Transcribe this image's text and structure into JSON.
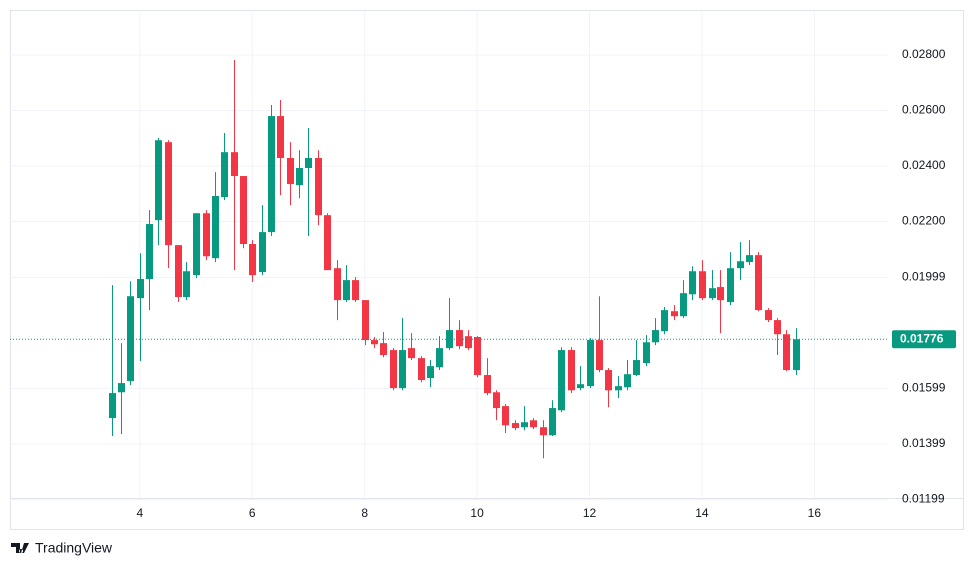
{
  "brand": "TradingView",
  "chart_data": {
    "type": "candlestick",
    "up_color": "#089981",
    "down_color": "#f23645",
    "grid": true,
    "xlim": [
      1.69,
      17.31
    ],
    "xticks": [
      4,
      6,
      8,
      10,
      12,
      14,
      16
    ],
    "ylim": [
      0.01204,
      0.02955
    ],
    "yticks": [
      {
        "value": 0.01199,
        "label": "0.01199"
      },
      {
        "value": 0.01399,
        "label": "0.01399"
      },
      {
        "value": 0.01599,
        "label": "0.01599"
      },
      {
        "value": 0.01999,
        "label": "0.01999"
      },
      {
        "value": 0.022,
        "label": "0.02200"
      },
      {
        "value": 0.024,
        "label": "0.02400"
      },
      {
        "value": 0.026,
        "label": "0.02600"
      },
      {
        "value": 0.028,
        "label": "0.02800"
      }
    ],
    "last_price": {
      "value": 0.01776,
      "label": "0.01776"
    },
    "x": [
      3.5,
      3.67,
      3.83,
      4,
      4.17,
      4.33,
      4.5,
      4.67,
      4.83,
      5,
      5.17,
      5.33,
      5.5,
      5.67,
      5.83,
      6,
      6.17,
      6.33,
      6.5,
      6.67,
      6.83,
      7,
      7.17,
      7.33,
      7.5,
      7.67,
      7.83,
      8,
      8.17,
      8.33,
      8.5,
      8.67,
      8.83,
      9,
      9.17,
      9.33,
      9.5,
      9.67,
      9.83,
      10,
      10.17,
      10.33,
      10.5,
      10.67,
      10.83,
      11,
      11.17,
      11.33,
      11.5,
      11.67,
      11.83,
      12,
      12.17,
      12.33,
      12.5,
      12.67,
      12.83,
      13,
      13.17,
      13.33,
      13.5,
      13.67,
      13.83,
      14,
      14.17,
      14.33,
      14.5,
      14.67,
      14.83,
      15,
      15.17,
      15.33,
      15.5,
      15.67
    ],
    "open": [
      0.01492,
      0.01585,
      0.01625,
      0.01924,
      0.01993,
      0.02205,
      0.02486,
      0.02115,
      0.01928,
      0.02007,
      0.0223,
      0.02068,
      0.02288,
      0.0245,
      0.02364,
      0.02119,
      0.02018,
      0.02162,
      0.0258,
      0.02429,
      0.02331,
      0.02393,
      0.02429,
      0.02223,
      0.02032,
      0.01917,
      0.01989,
      0.01917,
      0.01773,
      0.01762,
      0.01737,
      0.016,
      0.01744,
      0.01708,
      0.01636,
      0.01675,
      0.01744,
      0.01809,
      0.01787,
      0.01784,
      0.01647,
      0.01585,
      0.01535,
      0.01474,
      0.01459,
      0.01484,
      0.01459,
      0.0143,
      0.0152,
      0.01737,
      0.016,
      0.01607,
      0.01773,
      0.01665,
      0.01592,
      0.01603,
      0.01647,
      0.0169,
      0.01765,
      0.01805,
      0.01877,
      0.01859,
      0.01938,
      0.02021,
      0.01924,
      0.01964,
      0.0191,
      0.02032,
      0.02054,
      0.02079,
      0.01881,
      0.01845,
      0.01794,
      0.01665
    ],
    "high": [
      0.01971,
      0.01762,
      0.01985,
      0.02086,
      0.02241,
      0.02501,
      0.02493,
      0.02115,
      0.02054,
      0.0223,
      0.02241,
      0.02378,
      0.02519,
      0.02782,
      0.02364,
      0.02133,
      0.02259,
      0.0262,
      0.02638,
      0.02486,
      0.02457,
      0.02537,
      0.02457,
      0.0223,
      0.02061,
      0.02043,
      0.02,
      0.01917,
      0.01784,
      0.01802,
      0.01744,
      0.01852,
      0.01798,
      0.01715,
      0.01701,
      0.01787,
      0.01924,
      0.01845,
      0.01809,
      0.01787,
      0.01708,
      0.01592,
      0.01542,
      0.01484,
      0.01535,
      0.01492,
      0.01484,
      0.01556,
      0.01747,
      0.01747,
      0.01679,
      0.0178,
      0.01931,
      0.01672,
      0.01643,
      0.01701,
      0.01773,
      0.01791,
      0.01852,
      0.01892,
      0.01899,
      0.01989,
      0.02039,
      0.02061,
      0.02025,
      0.02025,
      0.0209,
      0.02126,
      0.02133,
      0.0209,
      0.01888,
      0.01852,
      0.01809,
      0.01816
    ],
    "low": [
      0.01427,
      0.01434,
      0.01611,
      0.01697,
      0.01881,
      0.02115,
      0.02032,
      0.0191,
      0.01917,
      0.01996,
      0.02061,
      0.02054,
      0.02277,
      0.02025,
      0.02104,
      0.01982,
      0.02007,
      0.02148,
      0.02295,
      0.02259,
      0.02284,
      0.02148,
      0.02187,
      0.02025,
      0.01845,
      0.0191,
      0.0191,
      0.01755,
      0.01744,
      0.01711,
      0.01592,
      0.01592,
      0.01701,
      0.01621,
      0.01603,
      0.01665,
      0.01737,
      0.0174,
      0.01737,
      0.01639,
      0.01574,
      0.01484,
      0.01438,
      0.01448,
      0.01448,
      0.01452,
      0.01347,
      0.01427,
      0.01513,
      0.01582,
      0.01592,
      0.016,
      0.01657,
      0.01531,
      0.01564,
      0.01592,
      0.01643,
      0.01679,
      0.01755,
      0.01794,
      0.01845,
      0.01852,
      0.01917,
      0.01917,
      0.01917,
      0.01798,
      0.01899,
      0.01989,
      0.02043,
      0.01877,
      0.01838,
      0.01719,
      0.01661,
      0.01647
    ],
    "close": [
      0.01582,
      0.01618,
      0.01931,
      0.01993,
      0.02191,
      0.02493,
      0.02115,
      0.01928,
      0.02021,
      0.0223,
      0.02075,
      0.02292,
      0.0245,
      0.02364,
      0.02119,
      0.02007,
      0.02162,
      0.0258,
      0.02429,
      0.02335,
      0.02393,
      0.02429,
      0.02223,
      0.02025,
      0.01917,
      0.01989,
      0.01917,
      0.01773,
      0.01758,
      0.01719,
      0.016,
      0.01737,
      0.01708,
      0.01629,
      0.01679,
      0.01744,
      0.01809,
      0.01751,
      0.01744,
      0.01647,
      0.01582,
      0.01528,
      0.01466,
      0.01456,
      0.01477,
      0.01459,
      0.0143,
      0.01528,
      0.01737,
      0.01592,
      0.01614,
      0.01773,
      0.01665,
      0.01592,
      0.01607,
      0.0165,
      0.01701,
      0.01765,
      0.01809,
      0.01881,
      0.01859,
      0.01942,
      0.02021,
      0.01924,
      0.0196,
      0.01917,
      0.02032,
      0.02057,
      0.02079,
      0.01881,
      0.01845,
      0.01794,
      0.01665,
      0.01776
    ]
  }
}
